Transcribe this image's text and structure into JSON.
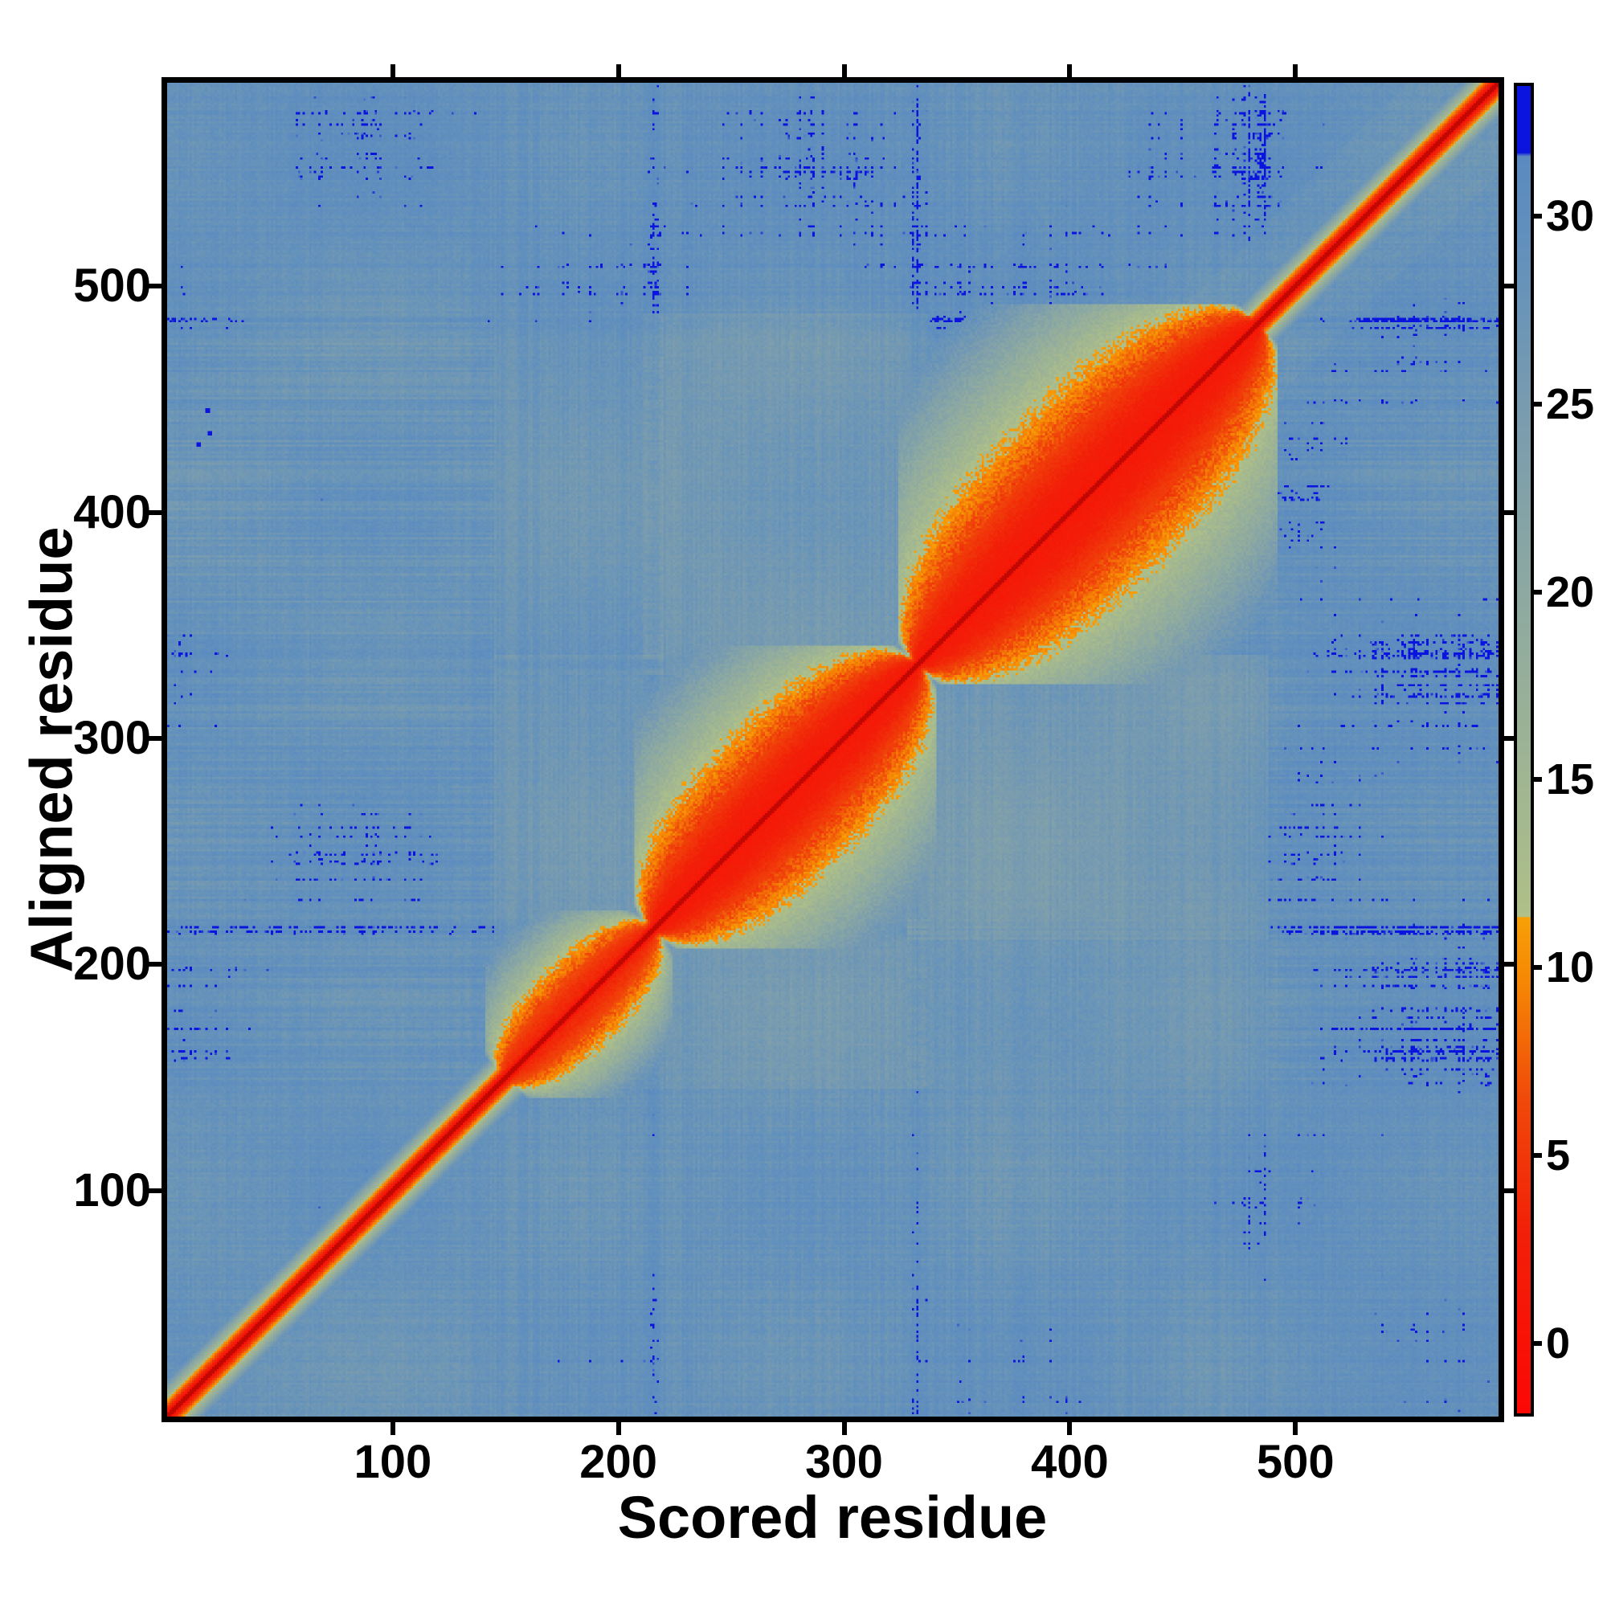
{
  "figure": {
    "xlabel": "Scored residue",
    "ylabel": "Aligned residue",
    "background_color": "#ffffff",
    "frame_color": "#000000"
  },
  "chart_data": {
    "type": "heatmap",
    "title": "",
    "xlabel": "Scored residue",
    "ylabel": "Aligned residue",
    "n_residues": 590,
    "x_range": [
      1,
      590
    ],
    "y_range": [
      1,
      590
    ],
    "x_ticks": [
      100,
      200,
      300,
      400,
      500
    ],
    "y_ticks": [
      100,
      200,
      300,
      400,
      500
    ],
    "grid": false,
    "legend_position": "right-colorbar",
    "colorbar": {
      "ticks": [
        0,
        5,
        10,
        15,
        20,
        25,
        30
      ],
      "top_value": 33.5,
      "bottom_value": -1.95,
      "overflow_threshold": 31.7,
      "overflow_color": "#0a14de"
    },
    "background_value": 28.2,
    "diagonal": {
      "core_halfwidth": 2,
      "slope": 2.0
    },
    "domains": [
      {
        "start": 150,
        "end": 216,
        "halfwidth": 26,
        "core_value": 3.0,
        "spread": 8.5
      },
      {
        "start": 216,
        "end": 333,
        "halfwidth": 46,
        "core_value": 1.5,
        "spread": 9.5
      },
      {
        "start": 333,
        "end": 484,
        "halfwidth": 56,
        "core_value": 1.5,
        "spread": 9.5
      }
    ],
    "boundary_bands": [
      216,
      333,
      484
    ],
    "interdomain_haze": [
      {
        "a": 1,
        "b": 2,
        "amount": 2.4
      },
      {
        "a": 0,
        "b": 1,
        "amount": 1.6
      },
      {
        "a": 0,
        "b": 2,
        "amount": 0.8
      }
    ],
    "outlier_points": [
      {
        "x": 18,
        "y": 445
      },
      {
        "x": 19,
        "y": 435
      },
      {
        "x": 14,
        "y": 430
      }
    ],
    "colormap_stops": [
      [
        -2.5,
        253,
        5,
        5
      ],
      [
        3.0,
        242,
        32,
        8
      ],
      [
        6.5,
        240,
        73,
        10
      ],
      [
        9.5,
        245,
        133,
        5
      ],
      [
        11.35,
        248,
        160,
        6
      ],
      [
        11.36,
        175,
        192,
        136
      ],
      [
        15.0,
        160,
        181,
        146
      ],
      [
        20.0,
        141,
        169,
        161
      ],
      [
        25.0,
        120,
        155,
        175
      ],
      [
        29.0,
        99,
        145,
        188
      ],
      [
        31.6,
        90,
        138,
        192
      ],
      [
        31.7,
        10,
        20,
        222
      ],
      [
        40.0,
        10,
        20,
        222
      ]
    ]
  }
}
